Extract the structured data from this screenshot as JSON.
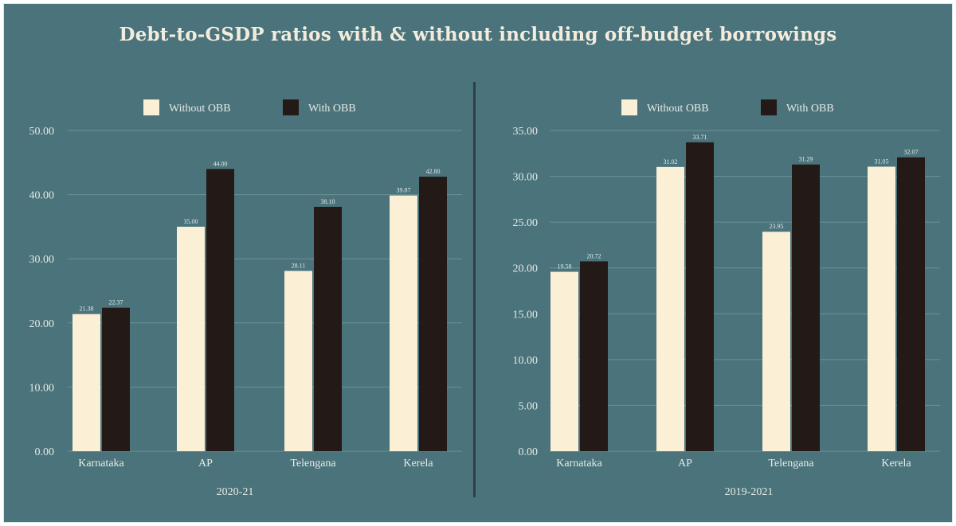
{
  "chart_data": {
    "title": "Debt-to-GSDP ratios with & without including off-budget borrowings",
    "colors": {
      "background": "#4a737b",
      "without_obb": "#fbefd6",
      "with_obb": "#231a18",
      "text": "#e6ebe6",
      "divider": "#2e3f45"
    },
    "legend": [
      "Without OBB",
      "With OBB"
    ],
    "charts": [
      {
        "type": "bar",
        "xlabel": "2020-21",
        "ylabel": "",
        "ylim": [
          0,
          50
        ],
        "yticks": [
          "0.00",
          "10.00",
          "20.00",
          "30.00",
          "40.00",
          "50.00"
        ],
        "ytick_values": [
          0,
          10,
          20,
          30,
          40,
          50
        ],
        "grid": true,
        "legend_position": "top-center",
        "categories": [
          "Karnataka",
          "AP",
          "Telengana",
          "Kerela"
        ],
        "series": [
          {
            "name": "Without OBB",
            "values": [
              21.38,
              35.0,
              28.11,
              39.87
            ],
            "labels": [
              "21.38",
              "35.00",
              "28.11",
              "39.87"
            ]
          },
          {
            "name": "With OBB",
            "values": [
              22.37,
              44.0,
              38.1,
              42.8
            ],
            "labels": [
              "22.37",
              "44.00",
              "38.10",
              "42.80"
            ]
          }
        ]
      },
      {
        "type": "bar",
        "xlabel": "2019-2021",
        "ylabel": "",
        "ylim": [
          0,
          35
        ],
        "yticks": [
          "0.00",
          "5.00",
          "10.00",
          "15.00",
          "20.00",
          "25.00",
          "30.00",
          "35.00"
        ],
        "ytick_values": [
          0,
          5,
          10,
          15,
          20,
          25,
          30,
          35
        ],
        "grid": true,
        "legend_position": "top-center",
        "categories": [
          "Karnataka",
          "AP",
          "Telengana",
          "Kerela"
        ],
        "series": [
          {
            "name": "Without OBB",
            "values": [
              19.58,
              31.02,
              23.95,
              31.05
            ],
            "labels": [
              "19.58",
              "31.02",
              "23.95",
              "31.05"
            ]
          },
          {
            "name": "With OBB",
            "values": [
              20.72,
              33.71,
              31.29,
              32.07
            ],
            "labels": [
              "20.72",
              "33.71",
              "31.29",
              "32.07"
            ]
          }
        ]
      }
    ]
  }
}
